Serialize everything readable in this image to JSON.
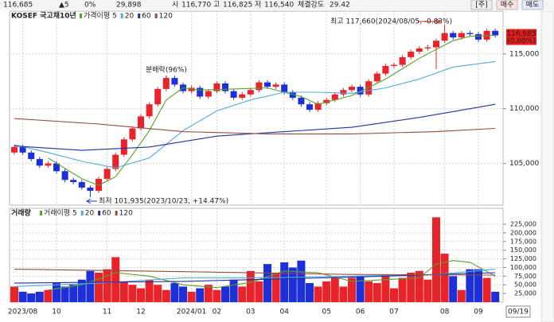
{
  "header": {
    "items": [
      {
        "text": "116,685",
        "color": "#d81b1b"
      },
      {
        "text": "▲5",
        "color": "#d81b1b"
      },
      {
        "text": "0%",
        "color": "#d81b1b"
      },
      {
        "text": "29,898",
        "color": "#222222"
      },
      {
        "text": "시",
        "color": "#555555"
      },
      {
        "text": "116,770",
        "color": "#d81b1b"
      },
      {
        "text": "고",
        "color": "#555555"
      },
      {
        "text": "116,825",
        "color": "#d81b1b"
      },
      {
        "text": "저",
        "color": "#555555"
      },
      {
        "text": "116,540",
        "color": "#1a3fd8"
      },
      {
        "text": "체결강도",
        "color": "#555555"
      },
      {
        "text": "29.42",
        "color": "#1a3fd8"
      }
    ],
    "buttons": [
      "[주]",
      "매수",
      "매도"
    ]
  },
  "chart_data": {
    "type": "candlestick",
    "title": "KOSEF 국고채10년",
    "categories": [
      null,
      "2023/08",
      null,
      null,
      null,
      "10",
      null,
      null,
      null,
      null,
      null,
      "11",
      null,
      null,
      null,
      "12",
      null,
      null,
      null,
      null,
      null,
      "2024/01",
      null,
      null,
      "02",
      null,
      null,
      null,
      "03",
      null,
      null,
      null,
      "04",
      null,
      null,
      null,
      null,
      "05",
      null,
      null,
      null,
      "06",
      null,
      null,
      null,
      "07",
      null,
      null,
      null,
      null,
      null,
      "08",
      null,
      null,
      null,
      "09",
      null,
      null
    ],
    "last_date": "09/19",
    "open": [
      106000,
      106500,
      106000,
      105400,
      104800,
      105000,
      104300,
      103500,
      103300,
      102800,
      102500,
      103600,
      104500,
      105800,
      107200,
      108200,
      109300,
      110400,
      111800,
      112800,
      112200,
      111600,
      111900,
      111100,
      111600,
      112300,
      111600,
      111000,
      111300,
      111700,
      112400,
      112000,
      112200,
      111500,
      111000,
      110400,
      109900,
      110500,
      110800,
      111300,
      111700,
      112000,
      111300,
      112500,
      113200,
      113900,
      114000,
      114700,
      115200,
      115500,
      115600,
      116200,
      116900,
      116500,
      116900,
      116800,
      116300,
      117100
    ],
    "high": [
      106700,
      106700,
      106200,
      105600,
      105200,
      105200,
      104500,
      103700,
      103500,
      103000,
      103800,
      104700,
      106000,
      107400,
      108400,
      109500,
      110600,
      112000,
      113000,
      113000,
      112400,
      112100,
      112100,
      111800,
      112500,
      112500,
      111800,
      111500,
      111900,
      112600,
      112600,
      112400,
      112400,
      111700,
      111200,
      110600,
      110700,
      111000,
      111500,
      111900,
      112200,
      112200,
      112700,
      113400,
      114100,
      114200,
      114900,
      115400,
      115700,
      115800,
      116400,
      117660,
      117100,
      117100,
      117100,
      117000,
      117300,
      117300
    ],
    "low": [
      105800,
      105800,
      105200,
      104600,
      104600,
      104100,
      103300,
      103100,
      102600,
      101935,
      102300,
      103400,
      104300,
      105600,
      107000,
      108000,
      109100,
      110200,
      111600,
      112000,
      111400,
      111400,
      110900,
      110900,
      111400,
      111400,
      110800,
      110800,
      111100,
      111500,
      111800,
      111800,
      111300,
      110800,
      110200,
      109700,
      109700,
      110300,
      110600,
      111100,
      111500,
      111100,
      111100,
      112300,
      113000,
      113700,
      113800,
      114500,
      115000,
      115300,
      113600,
      116000,
      116300,
      116300,
      116600,
      116100,
      116100,
      116500
    ],
    "close": [
      106500,
      106000,
      105400,
      104800,
      105000,
      104300,
      103500,
      103300,
      102800,
      102500,
      103600,
      104500,
      105800,
      107200,
      108200,
      109300,
      110400,
      111800,
      112800,
      112200,
      111600,
      111900,
      111100,
      111600,
      112300,
      111600,
      111000,
      111300,
      111700,
      112400,
      112000,
      112200,
      111500,
      111000,
      110400,
      109900,
      110500,
      110800,
      111300,
      111700,
      112000,
      111300,
      112500,
      113200,
      113900,
      114000,
      114700,
      115200,
      115500,
      115600,
      116200,
      116900,
      116500,
      116900,
      116800,
      116300,
      117100,
      116685
    ],
    "up_color": "#e8232a",
    "down_color": "#1c2fd9",
    "ylim": [
      101200,
      118900
    ],
    "yticks": [
      {
        "value": 115000,
        "label": "115,000"
      },
      {
        "value": 110000,
        "label": "110,000"
      },
      {
        "value": 105000,
        "label": "105,000"
      }
    ],
    "grid": true,
    "ma_series": [
      {
        "name": "가격이평 5",
        "color": "#5aa02c",
        "x": [
          4,
          8,
          10,
          12,
          14,
          16,
          18,
          20,
          22,
          26,
          30,
          34,
          36,
          40,
          44,
          48,
          50,
          52,
          54,
          57
        ],
        "values": [
          105500,
          103600,
          103000,
          103800,
          105800,
          108000,
          110800,
          111900,
          111700,
          111800,
          111900,
          111100,
          110400,
          111200,
          112700,
          114600,
          115400,
          116200,
          116600,
          116700
        ]
      },
      {
        "name": "20",
        "color": "#52a8e0",
        "x": [
          0,
          4,
          8,
          12,
          16,
          20,
          24,
          28,
          32,
          36,
          40,
          44,
          48,
          52,
          57
        ],
        "values": [
          106700,
          106000,
          105200,
          104600,
          105500,
          108000,
          109800,
          110800,
          111500,
          111500,
          111400,
          111900,
          112700,
          113800,
          114300
        ]
      },
      {
        "name": "60",
        "color": "#2430a0",
        "x": [
          0,
          8,
          16,
          24,
          32,
          40,
          48,
          57
        ],
        "values": [
          106600,
          106200,
          106500,
          107500,
          107900,
          108300,
          109200,
          110400
        ]
      },
      {
        "name": "120",
        "color": "#9a4a3a",
        "x": [
          0,
          10,
          20,
          30,
          40,
          50,
          57
        ],
        "values": [
          109100,
          108600,
          107900,
          107700,
          107700,
          107900,
          108200
        ]
      }
    ],
    "annotations": [
      {
        "text": "분배락(96%)"
      },
      {
        "text": "최고 117,660(2024/08/05, -0.83%)"
      },
      {
        "text": "최저 101,935(2023/10/23, +14.47%)"
      }
    ],
    "last_price_label": "116,685",
    "last_change_label": "(0.00%)",
    "volume": {
      "label": "거래량",
      "values": [
        45000,
        30000,
        25000,
        30000,
        35000,
        55000,
        45000,
        50000,
        65000,
        90000,
        85000,
        95000,
        130000,
        60000,
        50000,
        40000,
        65000,
        50000,
        35000,
        55000,
        45000,
        30000,
        40000,
        50000,
        35000,
        45000,
        65000,
        45000,
        90000,
        60000,
        110000,
        85000,
        115000,
        100000,
        120000,
        55000,
        45000,
        60000,
        70000,
        45000,
        70000,
        75000,
        60000,
        55000,
        80000,
        40000,
        70000,
        85000,
        90000,
        65000,
        245000,
        140000,
        75000,
        35000,
        95000,
        95000,
        70000,
        30000
      ],
      "ylim": [
        0,
        271000
      ],
      "yticks": [
        {
          "value": 225000,
          "label": "225,000"
        },
        {
          "value": 200000,
          "label": "200,000"
        },
        {
          "value": 175000,
          "label": "175,000"
        },
        {
          "value": 150000,
          "label": "150,000"
        },
        {
          "value": 125000,
          "label": "125,000"
        },
        {
          "value": 100000,
          "label": "100,000"
        },
        {
          "value": 75000,
          "label": "75,000"
        },
        {
          "value": 50000,
          "label": "50,000"
        },
        {
          "value": 25000,
          "label": "25,000"
        }
      ],
      "ma_series": [
        {
          "name": "거래이평 5",
          "color": "#5aa02c",
          "x": [
            4,
            8,
            12,
            16,
            20,
            24,
            28,
            32,
            36,
            40,
            44,
            48,
            50,
            52,
            54,
            57
          ],
          "values": [
            35000,
            50000,
            85000,
            75000,
            50000,
            42000,
            57000,
            90000,
            85000,
            60000,
            65000,
            70000,
            110000,
            120000,
            115000,
            75000
          ]
        },
        {
          "name": "20",
          "color": "#52a8e0",
          "x": [
            0,
            10,
            20,
            30,
            40,
            50,
            57
          ],
          "values": [
            45000,
            55000,
            70000,
            70000,
            75000,
            80000,
            95000
          ]
        },
        {
          "name": "60",
          "color": "#2430a0",
          "x": [
            0,
            20,
            40,
            57
          ],
          "values": [
            55000,
            60000,
            72000,
            85000
          ]
        },
        {
          "name": "120",
          "color": "#9a4a3a",
          "x": [
            0,
            20,
            40,
            57
          ],
          "values": [
            95000,
            88000,
            80000,
            78000
          ]
        }
      ]
    }
  }
}
